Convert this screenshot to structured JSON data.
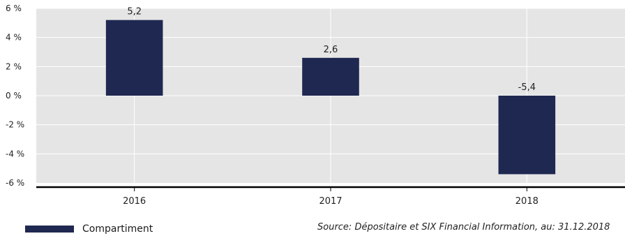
{
  "chart_data": {
    "type": "bar",
    "categories": [
      "2016",
      "2017",
      "2018"
    ],
    "series": [
      {
        "name": "Compartiment",
        "values": [
          5.2,
          2.6,
          -5.4
        ],
        "labels": [
          "5,2",
          "2,6",
          "-5,4"
        ]
      }
    ],
    "ylim": [
      -6,
      6
    ],
    "yticks": [
      6,
      4,
      2,
      0,
      -2,
      -4,
      -6
    ],
    "ytick_labels": [
      "6 %",
      "4 %",
      "2 %",
      "0 %",
      "-2 %",
      "-4 %",
      "-6 %"
    ],
    "grid": true,
    "legend_position": "bottom-left",
    "colors": {
      "bar": "#1f2850",
      "plot_background": "#e5e5e5",
      "grid": "#ffffff",
      "axis": "#000000"
    }
  },
  "legend": {
    "label": "Compartiment"
  },
  "source_note": "Source: Dépositaire et SIX Financial Information, au: 31.12.2018"
}
